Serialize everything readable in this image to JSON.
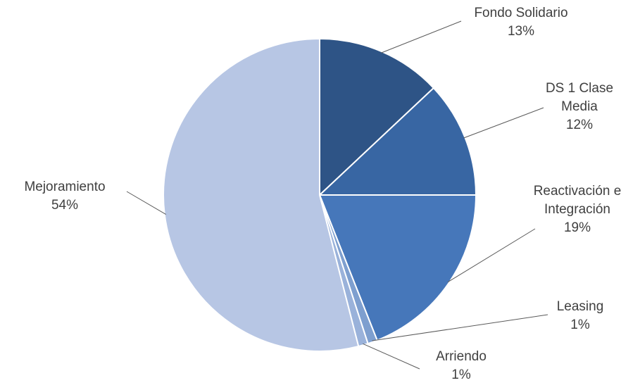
{
  "chart_data": {
    "type": "pie",
    "title": "",
    "start_angle_deg": 0,
    "direction": "clockwise",
    "slices": [
      {
        "label": "Fondo Solidario",
        "value": 13,
        "display": "13%",
        "color": "#2e5486",
        "label_lines": [
          "Fondo Solidario"
        ]
      },
      {
        "label": "DS 1 Clase Media",
        "value": 12,
        "display": "12%",
        "color": "#3866a3",
        "label_lines": [
          "DS 1 Clase",
          "Media"
        ]
      },
      {
        "label": "Reactivación e Integración",
        "value": 19,
        "display": "19%",
        "color": "#4677ba",
        "label_lines": [
          "Reactivación e",
          "Integración"
        ]
      },
      {
        "label": "Leasing",
        "value": 1,
        "display": "1%",
        "color": "#7e9fcf",
        "label_lines": [
          "Leasing"
        ]
      },
      {
        "label": "Arriendo",
        "value": 1,
        "display": "1%",
        "color": "#9ab2da",
        "label_lines": [
          "Arriendo"
        ]
      },
      {
        "label": "Mejoramiento",
        "value": 54,
        "display": "54%",
        "color": "#b7c6e4",
        "label_lines": [
          "Mejoramiento"
        ]
      }
    ]
  }
}
